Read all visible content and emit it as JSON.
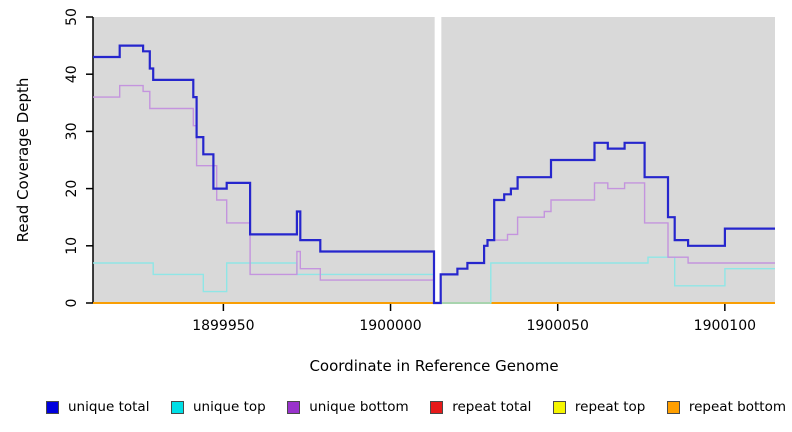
{
  "chart_data": {
    "type": "line",
    "step": true,
    "title": "",
    "xlabel": "Coordinate in Reference Genome",
    "ylabel": "Read Coverage Depth",
    "xlim": [
      1899911,
      1900115
    ],
    "ylim": [
      0,
      50
    ],
    "x_ticks": [
      1899950,
      1900000,
      1900050,
      1900100
    ],
    "y_ticks": [
      0,
      10,
      20,
      30,
      40,
      50
    ],
    "grid": false,
    "legend_position": "bottom",
    "panel_background": "#d9d9d9",
    "axis_color": "#000000",
    "gap_band": {
      "x_start": 1900013.2,
      "x_end": 1900015.2,
      "color": "#ffffff"
    },
    "series": [
      {
        "name": "unique total",
        "line_color": "#2626cd",
        "swatch_color": "#0000dd",
        "line_width": 2.2,
        "steps": [
          [
            1899911,
            43
          ],
          [
            1899919,
            45
          ],
          [
            1899926,
            44
          ],
          [
            1899928,
            41
          ],
          [
            1899929,
            39
          ],
          [
            1899941,
            36
          ],
          [
            1899942,
            29
          ],
          [
            1899944,
            26
          ],
          [
            1899947,
            20
          ],
          [
            1899951,
            21
          ],
          [
            1899958,
            12
          ],
          [
            1899972,
            16
          ],
          [
            1899973,
            11
          ],
          [
            1899979,
            9
          ],
          [
            1900013,
            0
          ],
          [
            1900015,
            5
          ],
          [
            1900020,
            6
          ],
          [
            1900023,
            7
          ],
          [
            1900028,
            10
          ],
          [
            1900029,
            11
          ],
          [
            1900031,
            18
          ],
          [
            1900034,
            19
          ],
          [
            1900036,
            20
          ],
          [
            1900038,
            22
          ],
          [
            1900048,
            25
          ],
          [
            1900061,
            28
          ],
          [
            1900065,
            27
          ],
          [
            1900070,
            28
          ],
          [
            1900076,
            22
          ],
          [
            1900083,
            15
          ],
          [
            1900085,
            11
          ],
          [
            1900089,
            10
          ],
          [
            1900100,
            13
          ]
        ]
      },
      {
        "name": "unique top",
        "line_color": "#8fe6e6",
        "swatch_color": "#00dfe6",
        "line_width": 1.4,
        "steps": [
          [
            1899911,
            7
          ],
          [
            1899929,
            5
          ],
          [
            1899944,
            2
          ],
          [
            1899951,
            7
          ],
          [
            1899972,
            5
          ],
          [
            1900013,
            0
          ],
          [
            1900030,
            7
          ],
          [
            1900077,
            8
          ],
          [
            1900085,
            3
          ],
          [
            1900100,
            6
          ]
        ]
      },
      {
        "name": "unique bottom",
        "line_color": "#c494de",
        "swatch_color": "#9933cc",
        "line_width": 1.4,
        "steps": [
          [
            1899911,
            36
          ],
          [
            1899919,
            38
          ],
          [
            1899926,
            37
          ],
          [
            1899928,
            34
          ],
          [
            1899941,
            31
          ],
          [
            1899942,
            24
          ],
          [
            1899948,
            18
          ],
          [
            1899951,
            14
          ],
          [
            1899958,
            5
          ],
          [
            1899972,
            9
          ],
          [
            1899973,
            6
          ],
          [
            1899979,
            4
          ],
          [
            1900013,
            0
          ],
          [
            1900015,
            5
          ],
          [
            1900020,
            6
          ],
          [
            1900023,
            7
          ],
          [
            1900028,
            10
          ],
          [
            1900029,
            11
          ],
          [
            1900035,
            12
          ],
          [
            1900038,
            15
          ],
          [
            1900046,
            16
          ],
          [
            1900048,
            18
          ],
          [
            1900061,
            21
          ],
          [
            1900065,
            20
          ],
          [
            1900070,
            21
          ],
          [
            1900076,
            14
          ],
          [
            1900083,
            8
          ],
          [
            1900089,
            7
          ]
        ]
      },
      {
        "name": "repeat total",
        "line_color": "#dd1111",
        "swatch_color": "#e61a1a",
        "line_width": 1.4,
        "steps": [
          [
            1899911,
            0
          ]
        ]
      },
      {
        "name": "repeat top",
        "line_color": "#f0f000",
        "swatch_color": "#f5f500",
        "line_width": 1.4,
        "steps": [
          [
            1899911,
            0
          ]
        ]
      },
      {
        "name": "repeat bottom",
        "line_color": "#ff9f00",
        "swatch_color": "#ff9f00",
        "line_width": 1.7,
        "steps": [
          [
            1899911,
            0
          ]
        ]
      }
    ]
  }
}
